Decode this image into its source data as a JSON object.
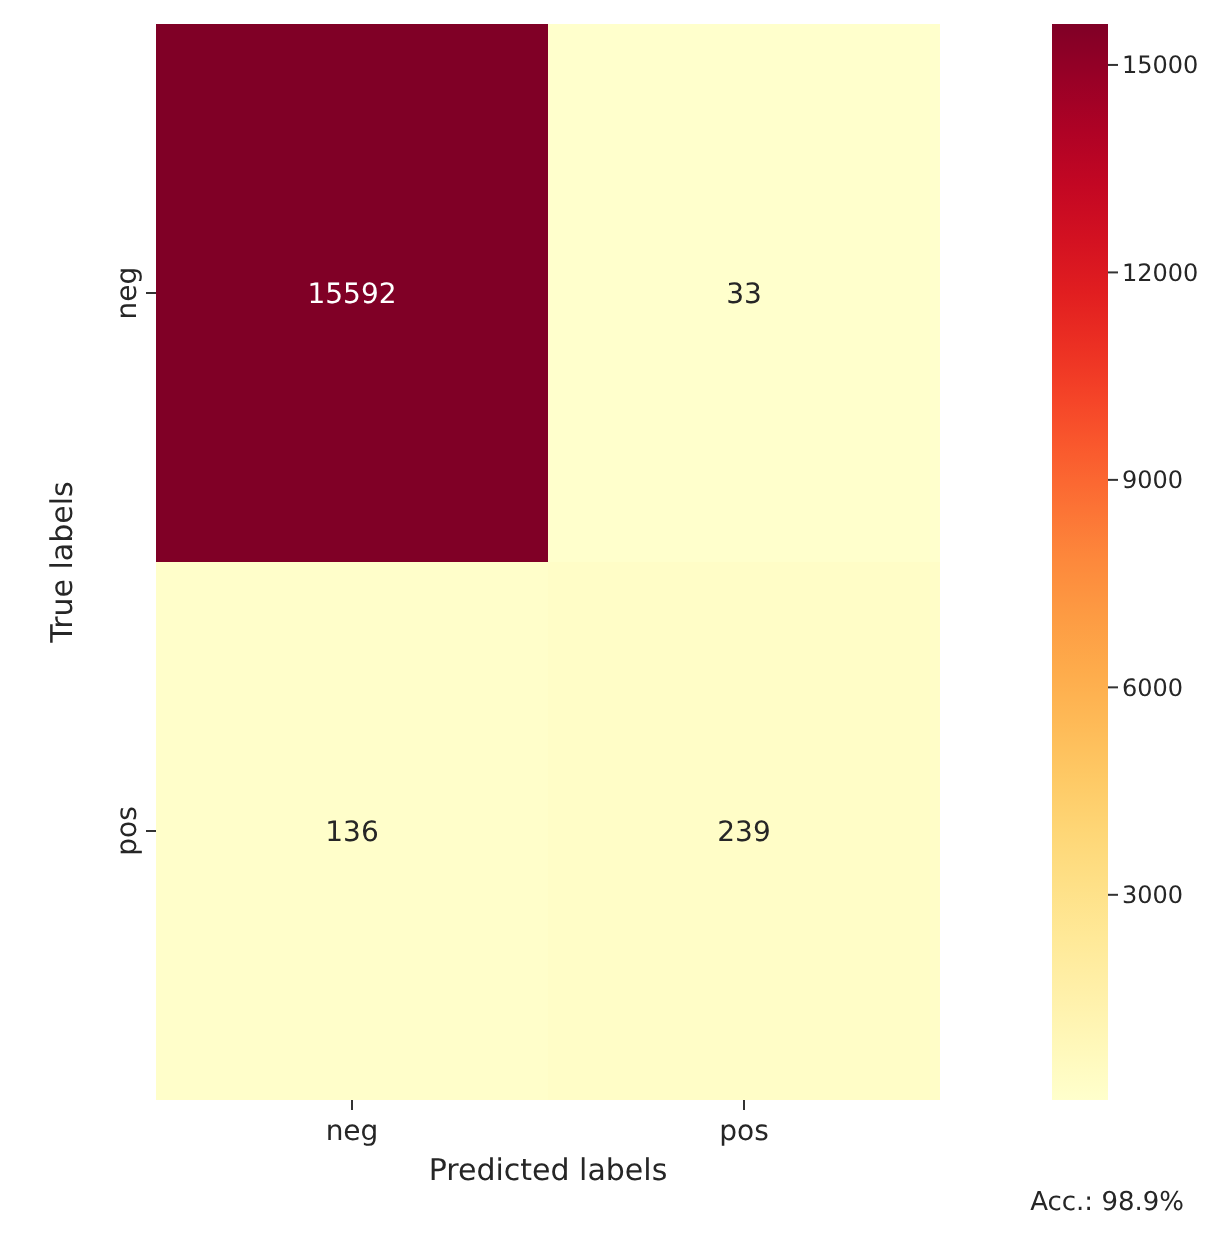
{
  "chart_data": {
    "type": "heatmap",
    "xlabel": "Predicted labels",
    "ylabel": "True labels",
    "categories": [
      "neg",
      "pos"
    ],
    "y_categories": [
      "neg",
      "pos"
    ],
    "cells": [
      [
        15592,
        33
      ],
      [
        136,
        239
      ]
    ],
    "clim": [
      33,
      15592
    ],
    "cticks": [
      3000,
      6000,
      9000,
      12000,
      15000
    ],
    "data_labels": true,
    "annotations": [
      "Acc.: 98.9%"
    ]
  }
}
